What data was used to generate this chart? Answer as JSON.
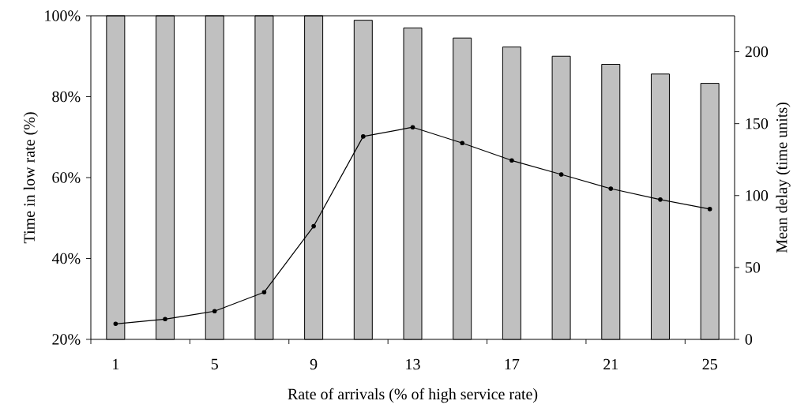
{
  "chart_data": {
    "type": "bar",
    "xlabel": "Rate of arrivals (% of high service rate)",
    "ylabel": "Time in low rate (%)",
    "y2label": "Mean delay (time units)",
    "categories": [
      "1",
      null,
      "5",
      null,
      "9",
      null,
      "13",
      null,
      "17",
      null,
      "21",
      null,
      "25"
    ],
    "series": [
      {
        "color": "#c0c0c0",
        "values": [
          100,
          100,
          100,
          100,
          100,
          98.9,
          97.0,
          94.5,
          92.3,
          90.0,
          88.0,
          85.6,
          83.3
        ]
      },
      {
        "type": "line",
        "axis": "y2",
        "color": "#000000",
        "values": [
          10.8,
          14.1,
          19.6,
          32.8,
          78.7,
          141.1,
          147.5,
          136.5,
          124.4,
          114.7,
          104.8,
          97.2,
          90.6
        ]
      }
    ],
    "marker": "circle",
    "line_style": "solid",
    "ylim": [
      20,
      100
    ],
    "yticks": [
      {
        "value": 20,
        "label": "20%"
      },
      {
        "value": 40,
        "label": "40%"
      },
      {
        "value": 60,
        "label": "60%"
      },
      {
        "value": 80,
        "label": "80%"
      },
      {
        "value": 100,
        "label": "100%"
      }
    ],
    "y2lim": [
      0,
      225
    ],
    "y2ticks": [
      0,
      50,
      100,
      150,
      200
    ]
  }
}
